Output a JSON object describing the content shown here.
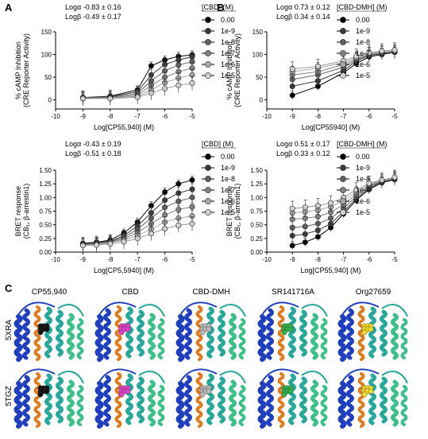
{
  "figure": {
    "panel_labels": {
      "a": "A",
      "b": "B",
      "c": "C"
    },
    "colors": {
      "conc": [
        "#000000",
        "#3a3a3a",
        "#606060",
        "#828282",
        "#a8a8a8",
        "#cfcfcf"
      ],
      "protein_blue": "#1f3fbf",
      "protein_teal": "#26a89a",
      "protein_green": "#3cc089",
      "protein_orange": "#e07b1c",
      "ligands": {
        "CP55,940": "#111111",
        "CBD": "#e040c8",
        "CBD-DMH": "#b9b9b9",
        "SR141716A": "#2fb34a",
        "Org27659": "#f2dc2a"
      }
    },
    "structures": {
      "row_labels": [
        "5XRA",
        "5TGZ"
      ],
      "ligand_labels": [
        "CP55,940",
        "CBD",
        "CBD-DMH",
        "SR141716A",
        "Org27659"
      ]
    }
  },
  "chart_data": [
    {
      "type": "line",
      "panel": "A-top",
      "annotation": [
        "Logα -0.83 ± 0.16",
        "Logβ -0.49 ± 0.17"
      ],
      "xlabel": "Log[CP55,940] (M)",
      "ylabel": "% cAMP Inhibition",
      "ylabel2": "(CRE Reporter Activity)",
      "xlim": [
        -10,
        -5
      ],
      "ylim": [
        -20,
        150
      ],
      "xticks": [
        "-10",
        "-9",
        "-8",
        "-7",
        "-6",
        "-5"
      ],
      "yticks": [
        "0",
        "50",
        "100",
        "150"
      ],
      "legend_title": "[CBD] (M)",
      "x": [
        -9,
        -8,
        -7,
        -6.5,
        -6,
        -5.5,
        -5
      ],
      "series": [
        {
          "name": "0.00",
          "values": [
            5,
            8,
            22,
            75,
            88,
            96,
            99
          ]
        },
        {
          "name": "1e-9",
          "values": [
            5,
            7,
            18,
            55,
            78,
            88,
            95
          ]
        },
        {
          "name": "1e-8",
          "values": [
            4,
            6,
            14,
            42,
            64,
            77,
            84
          ]
        },
        {
          "name": "1e-7",
          "values": [
            3,
            5,
            10,
            32,
            50,
            62,
            70
          ]
        },
        {
          "name": "1e-6",
          "values": [
            3,
            4,
            8,
            22,
            38,
            48,
            55
          ]
        },
        {
          "name": "1e-5",
          "values": [
            3,
            3,
            6,
            15,
            25,
            32,
            37
          ]
        }
      ]
    },
    {
      "type": "line",
      "panel": "B-top",
      "annotation": [
        "Logα 0.73 ± 0.12",
        "Logβ 0.34 ± 0.14"
      ],
      "xlabel": "Log[CP55940] (M)",
      "ylabel": "% cAMP Inhibition",
      "ylabel2": "(CRE Reporter Activity)",
      "xlim": [
        -10,
        -5
      ],
      "ylim": [
        -20,
        150
      ],
      "xticks": [
        "-10",
        "-9",
        "-8",
        "-7",
        "-6",
        "-5"
      ],
      "yticks": [
        "0",
        "50",
        "100",
        "150"
      ],
      "legend_title": "[CBD-DMH] (M)",
      "x": [
        -9,
        -8,
        -7,
        -6.5,
        -6,
        -5.5,
        -5
      ],
      "series": [
        {
          "name": "0.00",
          "values": [
            10,
            30,
            60,
            80,
            95,
            100,
            105
          ]
        },
        {
          "name": "1e-9",
          "values": [
            30,
            42,
            65,
            85,
            98,
            102,
            105
          ]
        },
        {
          "name": "1e-8",
          "values": [
            45,
            55,
            72,
            88,
            100,
            104,
            106
          ]
        },
        {
          "name": "1e-7",
          "values": [
            55,
            62,
            78,
            90,
            100,
            104,
            107
          ]
        },
        {
          "name": "1e-6",
          "values": [
            62,
            70,
            82,
            93,
            102,
            106,
            108
          ]
        },
        {
          "name": "1e-5",
          "values": [
            68,
            74,
            86,
            96,
            104,
            108,
            110
          ]
        }
      ]
    },
    {
      "type": "line",
      "panel": "A-bottom",
      "annotation": [
        "Logα -0.43 ± 0.19",
        "Logβ -0.51 ± 0.18"
      ],
      "xlabel": "Log[CP5,5940] (M)",
      "ylabel": "BRET response",
      "ylabel2": "(CB₁, β-arrestin1)",
      "xlim": [
        -10,
        -5
      ],
      "ylim": [
        0,
        1.5
      ],
      "xticks": [
        "-10",
        "-9",
        "-8",
        "-7",
        "-6",
        "-5"
      ],
      "yticks": [
        "0.00",
        "0.25",
        "0.50",
        "0.75",
        "1.00",
        "1.25",
        "1.50"
      ],
      "legend_title": "[CBD] (M)",
      "x": [
        -9,
        -8.5,
        -8,
        -7.5,
        -7,
        -6.5,
        -6,
        -5.5,
        -5
      ],
      "series": [
        {
          "name": "0.00",
          "values": [
            0.16,
            0.18,
            0.22,
            0.35,
            0.55,
            0.85,
            1.1,
            1.25,
            1.32
          ]
        },
        {
          "name": "1e-9",
          "values": [
            0.15,
            0.17,
            0.2,
            0.3,
            0.48,
            0.72,
            0.95,
            1.08,
            1.15
          ]
        },
        {
          "name": "1e-8",
          "values": [
            0.14,
            0.16,
            0.19,
            0.27,
            0.42,
            0.62,
            0.82,
            0.93,
            1.0
          ]
        },
        {
          "name": "1e-7",
          "values": [
            0.13,
            0.15,
            0.18,
            0.24,
            0.36,
            0.52,
            0.68,
            0.78,
            0.83
          ]
        },
        {
          "name": "1e-6",
          "values": [
            0.13,
            0.14,
            0.17,
            0.22,
            0.3,
            0.42,
            0.55,
            0.62,
            0.66
          ]
        },
        {
          "name": "1e-5",
          "values": [
            0.12,
            0.13,
            0.15,
            0.19,
            0.25,
            0.34,
            0.43,
            0.49,
            0.52
          ]
        }
      ]
    },
    {
      "type": "line",
      "panel": "B-bottom",
      "annotation": [
        "Logα 0.51 ± 0.17",
        "Logβ 0.33 ± 0.12"
      ],
      "xlabel": "Log[CP55,940] (M)",
      "ylabel": "BRET response",
      "ylabel2": "(CB₁, β-arrestin1)",
      "xlim": [
        -10,
        -5
      ],
      "ylim": [
        0,
        1.5
      ],
      "xticks": [
        "-10",
        "-9",
        "-8",
        "-7",
        "-6",
        "-5"
      ],
      "yticks": [
        "0.00",
        "0.25",
        "0.50",
        "0.75",
        "1.00",
        "1.25",
        "1.50"
      ],
      "legend_title": "[CBD-DMH] (M)",
      "x": [
        -9,
        -8.5,
        -8,
        -7.5,
        -7,
        -6.5,
        -6,
        -5.5,
        -5
      ],
      "series": [
        {
          "name": "0.00",
          "values": [
            0.12,
            0.18,
            0.28,
            0.45,
            0.7,
            0.95,
            1.15,
            1.27,
            1.33
          ]
        },
        {
          "name": "1e-9",
          "values": [
            0.3,
            0.33,
            0.4,
            0.52,
            0.74,
            0.98,
            1.17,
            1.28,
            1.34
          ]
        },
        {
          "name": "1e-8",
          "values": [
            0.45,
            0.47,
            0.52,
            0.62,
            0.8,
            1.02,
            1.2,
            1.29,
            1.35
          ]
        },
        {
          "name": "1e-7",
          "values": [
            0.6,
            0.62,
            0.65,
            0.73,
            0.87,
            1.06,
            1.22,
            1.3,
            1.36
          ]
        },
        {
          "name": "1e-6",
          "values": [
            0.72,
            0.74,
            0.77,
            0.83,
            0.94,
            1.1,
            1.24,
            1.31,
            1.36
          ]
        },
        {
          "name": "1e-5",
          "values": [
            0.8,
            0.82,
            0.85,
            0.9,
            1.0,
            1.14,
            1.26,
            1.32,
            1.37
          ]
        }
      ]
    }
  ]
}
